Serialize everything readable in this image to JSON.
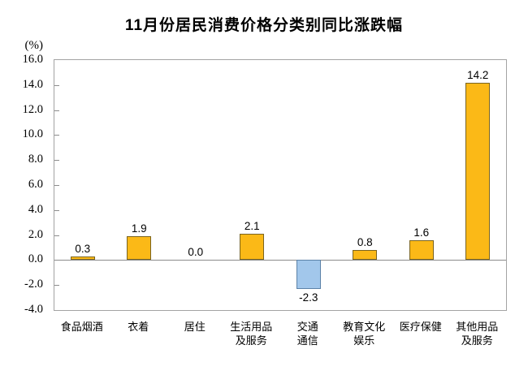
{
  "page": {
    "background": "#ffffff"
  },
  "chart_data": {
    "type": "bar",
    "title": "11月份居民消费价格分类别同比涨跌幅",
    "unit_label": "(%)",
    "categories": [
      "食品烟酒",
      "衣着",
      "居住",
      "生活用品\n及服务",
      "交通\n通信",
      "教育文化\n娱乐",
      "医疗保健",
      "其他用品\n及服务"
    ],
    "values": [
      0.3,
      1.9,
      0.0,
      2.1,
      -2.3,
      0.8,
      1.6,
      14.2
    ],
    "value_labels": [
      "0.3",
      "1.9",
      "0.0",
      "2.1",
      "-2.3",
      "0.8",
      "1.6",
      "14.2"
    ],
    "xlabel": "",
    "ylabel": "(%)",
    "ylim": [
      -4.0,
      16.0
    ],
    "ytick_step": 2.0,
    "yticks": [
      "16.0",
      "14.0",
      "12.0",
      "10.0",
      "8.0",
      "6.0",
      "4.0",
      "2.0",
      "0.0",
      "-2.0",
      "-4.0"
    ],
    "grid": false,
    "legend": "none",
    "colors": {
      "bar_positive_fill": "#FBB917",
      "bar_positive_border": "#7A6420",
      "bar_negative_fill": "#A2C7EB",
      "bar_negative_border": "#5C82A8",
      "axis_line": "#8c8c8c",
      "plot_border": "#a3a3a3",
      "text": "#000000"
    }
  }
}
